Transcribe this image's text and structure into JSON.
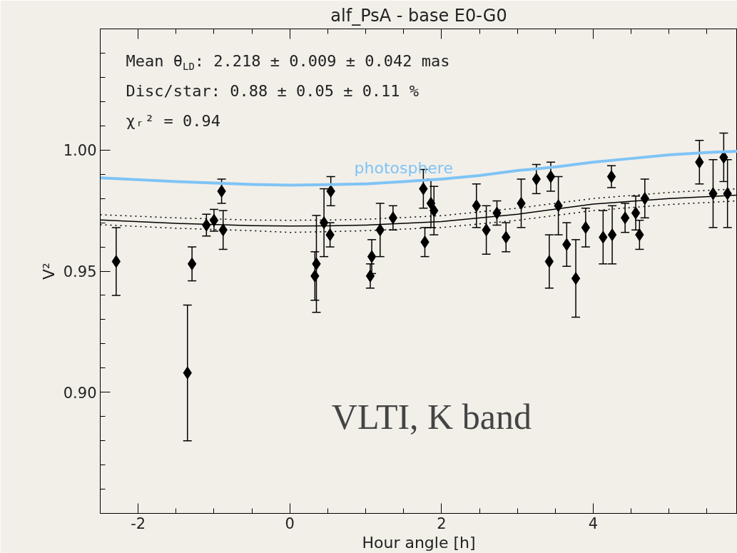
{
  "chart_data": {
    "type": "scatter",
    "title": "alf_PsA - base E0-G0",
    "xlabel": "Hour angle [h]",
    "ylabel": "V²",
    "xlim": [
      -2.5,
      5.9
    ],
    "ylim": [
      0.85,
      1.05
    ],
    "xticks": [
      -2,
      0,
      2,
      4,
      {
        "value": -1.5,
        "label": null
      },
      {
        "value": -1,
        "label": null
      },
      {
        "value": -0.5,
        "label": null
      },
      {
        "value": 0.5,
        "label": null
      },
      {
        "value": 1,
        "label": null
      },
      {
        "value": 1.5,
        "label": null
      },
      {
        "value": 2.5,
        "label": null
      },
      {
        "value": 3,
        "label": null
      },
      {
        "value": 3.5,
        "label": null
      },
      {
        "value": 4.5,
        "label": null
      },
      {
        "value": 5,
        "label": null
      },
      {
        "value": 5.5,
        "label": null
      }
    ],
    "yticks": [
      {
        "value": 0.9,
        "label": "0.90"
      },
      {
        "value": 0.95,
        "label": "0.95"
      },
      {
        "value": 1.0,
        "label": "1.00"
      },
      {
        "value": 0.86,
        "label": null
      },
      {
        "value": 0.87,
        "label": null
      },
      {
        "value": 0.88,
        "label": null
      },
      {
        "value": 0.89,
        "label": null
      },
      {
        "value": 0.91,
        "label": null
      },
      {
        "value": 0.92,
        "label": null
      },
      {
        "value": 0.93,
        "label": null
      },
      {
        "value": 0.94,
        "label": null
      },
      {
        "value": 0.96,
        "label": null
      },
      {
        "value": 0.97,
        "label": null
      },
      {
        "value": 0.98,
        "label": null
      },
      {
        "value": 0.99,
        "label": null
      },
      {
        "value": 1.01,
        "label": null
      },
      {
        "value": 1.02,
        "label": null
      },
      {
        "value": 1.03,
        "label": null
      },
      {
        "value": 1.04,
        "label": null
      }
    ],
    "annotations": [
      "Mean θ$_{LD}$: 2.218 ± 0.009 ± 0.042 mas",
      "Disc/star:  0.88 ± 0.05 ± 0.11 %",
      "χᵣ² =  0.94",
      "VLTI, K band"
    ],
    "series": [
      {
        "marker": "diamond",
        "color": "#000000",
        "x": [
          -2.29,
          -1.35,
          -1.29,
          -1.1,
          -1.0,
          -0.9,
          -0.88,
          0.33,
          0.35,
          0.45,
          0.54,
          0.53,
          1.06,
          1.08,
          1.19,
          1.36,
          1.76,
          1.78,
          1.86,
          1.9,
          2.46,
          2.59,
          2.73,
          2.85,
          3.05,
          3.25,
          3.42,
          3.44,
          3.54,
          3.65,
          3.77,
          3.9,
          4.13,
          4.24,
          4.25,
          4.42,
          4.56,
          4.61,
          4.68,
          5.4,
          5.58,
          5.72,
          5.77
        ],
        "values": [
          0.954,
          0.908,
          0.953,
          0.969,
          0.971,
          0.983,
          0.967,
          0.948,
          0.953,
          0.97,
          0.983,
          0.965,
          0.948,
          0.956,
          0.967,
          0.972,
          0.984,
          0.962,
          0.978,
          0.975,
          0.977,
          0.967,
          0.974,
          0.964,
          0.978,
          0.988,
          0.954,
          0.989,
          0.977,
          0.961,
          0.947,
          0.968,
          0.964,
          0.989,
          0.965,
          0.972,
          0.974,
          0.965,
          0.98,
          0.995,
          0.982,
          0.997,
          0.982
        ],
        "errors": [
          0.014,
          0.028,
          0.007,
          0.0045,
          0.0045,
          0.005,
          0.008,
          0.01,
          0.02,
          0.014,
          0.006,
          0.005,
          0.005,
          0.007,
          0.011,
          0.005,
          0.008,
          0.006,
          0.01,
          0.01,
          0.009,
          0.01,
          0.005,
          0.006,
          0.01,
          0.006,
          0.011,
          0.006,
          0.012,
          0.009,
          0.016,
          0.008,
          0.011,
          0.0045,
          0.012,
          0.006,
          0.007,
          0.006,
          0.008,
          0.009,
          0.014,
          0.01,
          0.014
        ]
      },
      {
        "type": "line",
        "name": "photosphere",
        "color": "#7fc4f5",
        "x": [
          -2.5,
          -1.5,
          -0.5,
          0,
          0.5,
          1,
          1.5,
          2,
          2.5,
          3,
          3.5,
          4,
          4.5,
          5,
          5.5,
          5.9
        ],
        "values": [
          0.9885,
          0.987,
          0.9858,
          0.9855,
          0.9857,
          0.986,
          0.987,
          0.988,
          0.9895,
          0.9915,
          0.993,
          0.995,
          0.9965,
          0.998,
          0.999,
          0.9995
        ]
      },
      {
        "type": "line",
        "color": "#000000",
        "x": [
          -2.5,
          -1.5,
          -0.5,
          0,
          0.5,
          1,
          2,
          3,
          4,
          5,
          5.9
        ],
        "values": [
          0.9711,
          0.9697,
          0.9688,
          0.9686,
          0.9687,
          0.969,
          0.9705,
          0.9735,
          0.9777,
          0.98,
          0.9814
        ]
      },
      {
        "type": "line",
        "color": "#000000",
        "line_style": "dotted",
        "x": [
          -2.5,
          -1.5,
          -0.5,
          0,
          0.5,
          1,
          2,
          3,
          4,
          5,
          5.9
        ],
        "values": [
          0.9733,
          0.972,
          0.9711,
          0.971,
          0.9711,
          0.9714,
          0.9729,
          0.976,
          0.98,
          0.9825,
          0.984
        ]
      },
      {
        "type": "line",
        "color": "#000000",
        "line_style": "dotted",
        "x": [
          -2.5,
          -1.5,
          -0.5,
          0,
          0.5,
          1,
          2,
          3,
          4,
          5,
          5.9
        ],
        "values": [
          0.9692,
          0.9677,
          0.9667,
          0.966,
          0.9663,
          0.9667,
          0.968,
          0.971,
          0.975,
          0.9775,
          0.979
        ]
      }
    ]
  }
}
